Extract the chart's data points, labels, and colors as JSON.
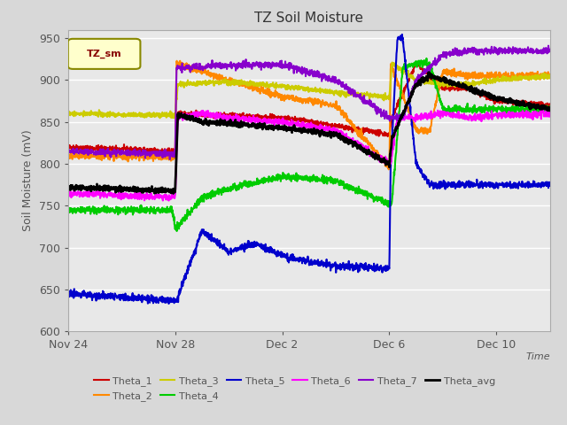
{
  "title": "TZ Soil Moisture",
  "ylabel": "Soil Moisture (mV)",
  "xlabel": "Time",
  "ylim": [
    600,
    960
  ],
  "yticks": [
    600,
    650,
    700,
    750,
    800,
    850,
    900,
    950
  ],
  "xtick_labels": [
    "Nov 24",
    "Nov 28",
    "Dec 2",
    "Dec 6",
    "Dec 10"
  ],
  "bg_color": "#d8d8d8",
  "plot_bg": "#e8e8e8",
  "legend_box_color": "#ffffcc",
  "legend_box_edge": "#888800",
  "legend_label_color": "#880000",
  "series_colors": {
    "Theta_1": "#cc0000",
    "Theta_2": "#ff8800",
    "Theta_3": "#cccc00",
    "Theta_4": "#00cc00",
    "Theta_5": "#0000cc",
    "Theta_6": "#ff00ff",
    "Theta_7": "#8800cc",
    "Theta_avg": "#000000"
  }
}
